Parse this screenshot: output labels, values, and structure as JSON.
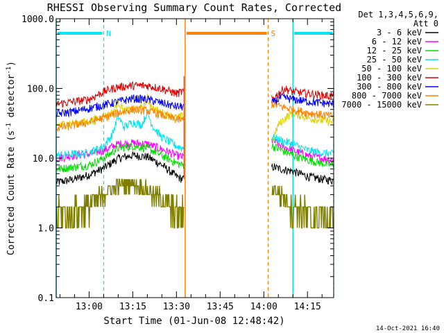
{
  "chart_data": {
    "type": "line",
    "title": "RHESSI Observing Summary Count Rates, Corrected",
    "xlabel": "Start Time (01-Jun-08 12:48:42)",
    "ylabel_main": "Corrected Count Rate (s",
    "ylabel_sup1": "-1",
    "ylabel_mid": " detector",
    "ylabel_sup2": "-1",
    "ylabel_end": ")",
    "yscale": "log",
    "ylim": [
      0.1,
      1000
    ],
    "xlim": [
      "12:48:42",
      "14:24:00"
    ],
    "x_ticks": [
      "13:00",
      "13:15",
      "13:30",
      "13:45",
      "14:00",
      "14:15"
    ],
    "y_ticks": [
      "0.1",
      "1.0",
      "10.0",
      "100.0",
      "1000.0"
    ],
    "legend_header": [
      "Det 1,3,4,5,6,9,",
      "Att 0"
    ],
    "legend_placement": "right",
    "footer_date": "14-Oct-2021 16:40",
    "markers": [
      {
        "label": "N",
        "type": "night",
        "start": "12:48:42",
        "end": "13:05:00",
        "color": "#00e5ee",
        "end_dashed": true
      },
      {
        "label": "S",
        "type": "saa",
        "start": "13:33:00",
        "end": "14:01:30",
        "color": "#ff8000",
        "end_dashed": true
      },
      {
        "label": "",
        "type": "night",
        "start": "14:10:00",
        "end": "14:24:00",
        "color": "#00e5ee",
        "end_dashed": true
      }
    ],
    "series": [
      {
        "name": "3 - 6 keV",
        "color": "#000000",
        "keys": [
          [
            "12:48:42",
            4.5
          ],
          [
            "12:55",
            5
          ],
          [
            "13:00",
            5.8
          ],
          [
            "13:05",
            7.2
          ],
          [
            "13:10",
            10
          ],
          [
            "13:15",
            11
          ],
          [
            "13:20",
            10.5
          ],
          [
            "13:25",
            8
          ],
          [
            "13:30",
            5.5
          ],
          [
            "13:32",
            5
          ],
          [
            "14:03",
            7.5
          ],
          [
            "14:06",
            7
          ],
          [
            "14:10",
            6.5
          ],
          [
            "14:15",
            5.5
          ],
          [
            "14:20",
            5
          ],
          [
            "14:24",
            4.8
          ]
        ]
      },
      {
        "name": "6 - 12 keV",
        "color": "#ff00ff",
        "keys": [
          [
            "12:48:42",
            10
          ],
          [
            "12:55",
            11
          ],
          [
            "13:00",
            11.5
          ],
          [
            "13:05",
            13
          ],
          [
            "13:10",
            16
          ],
          [
            "13:15",
            16.5
          ],
          [
            "13:20",
            16
          ],
          [
            "13:25",
            13.5
          ],
          [
            "13:30",
            11
          ],
          [
            "13:32",
            10.5
          ],
          [
            "14:03",
            18
          ],
          [
            "14:06",
            15
          ],
          [
            "14:10",
            13
          ],
          [
            "14:15",
            11
          ],
          [
            "14:20",
            10
          ],
          [
            "14:24",
            9.5
          ]
        ]
      },
      {
        "name": "12 - 25 keV",
        "color": "#00dd00",
        "keys": [
          [
            "12:48:42",
            7
          ],
          [
            "12:55",
            7.5
          ],
          [
            "13:00",
            8
          ],
          [
            "13:05",
            10
          ],
          [
            "13:10",
            14
          ],
          [
            "13:15",
            15
          ],
          [
            "13:20",
            14
          ],
          [
            "13:25",
            11
          ],
          [
            "13:30",
            8.5
          ],
          [
            "13:32",
            8
          ],
          [
            "14:03",
            15
          ],
          [
            "14:06",
            13
          ],
          [
            "14:10",
            11
          ],
          [
            "14:15",
            9.5
          ],
          [
            "14:20",
            8.5
          ],
          [
            "14:24",
            8
          ]
        ]
      },
      {
        "name": "25 - 50 keV",
        "color": "#00e5ee",
        "keys": [
          [
            "12:48:42",
            11
          ],
          [
            "12:55",
            11.5
          ],
          [
            "13:00",
            12
          ],
          [
            "13:05",
            15
          ],
          [
            "13:08",
            22
          ],
          [
            "13:10",
            40
          ],
          [
            "13:12",
            28
          ],
          [
            "13:15",
            33
          ],
          [
            "13:18",
            30
          ],
          [
            "13:20",
            45
          ],
          [
            "13:22",
            28
          ],
          [
            "13:25",
            20
          ],
          [
            "13:30",
            15
          ],
          [
            "13:32",
            14
          ],
          [
            "14:03",
            20
          ],
          [
            "14:06",
            18
          ],
          [
            "14:10",
            16
          ],
          [
            "14:15",
            13
          ],
          [
            "14:20",
            12
          ],
          [
            "14:24",
            11.5
          ]
        ]
      },
      {
        "name": "50 - 100 keV",
        "color": "#e0d000",
        "keys": [
          [
            "12:48:42",
            30
          ],
          [
            "12:55",
            32
          ],
          [
            "13:00",
            34
          ],
          [
            "13:05",
            40
          ],
          [
            "13:08",
            45
          ],
          [
            "13:10",
            65
          ],
          [
            "13:12",
            48
          ],
          [
            "13:15",
            50
          ],
          [
            "13:18",
            52
          ],
          [
            "13:20",
            72
          ],
          [
            "13:22",
            52
          ],
          [
            "13:25",
            45
          ],
          [
            "13:30",
            38
          ],
          [
            "13:32",
            40
          ],
          [
            "14:03",
            18
          ],
          [
            "14:05",
            30
          ],
          [
            "14:08",
            40
          ],
          [
            "14:10",
            45
          ],
          [
            "14:15",
            38
          ],
          [
            "14:20",
            35
          ],
          [
            "14:24",
            33
          ]
        ]
      },
      {
        "name": "100 - 300 keV",
        "color": "#dd0000",
        "keys": [
          [
            "12:48:42",
            60
          ],
          [
            "12:55",
            65
          ],
          [
            "13:00",
            70
          ],
          [
            "13:05",
            90
          ],
          [
            "13:08",
            100
          ],
          [
            "13:10",
            105
          ],
          [
            "13:15",
            110
          ],
          [
            "13:20",
            110
          ],
          [
            "13:25",
            100
          ],
          [
            "13:30",
            85
          ],
          [
            "13:32",
            90
          ],
          [
            "14:03",
            70
          ],
          [
            "14:05",
            85
          ],
          [
            "14:07",
            100
          ],
          [
            "14:10",
            90
          ],
          [
            "14:15",
            85
          ],
          [
            "14:20",
            80
          ],
          [
            "14:24",
            78
          ]
        ]
      },
      {
        "name": "300 - 800 keV",
        "color": "#0000ff",
        "keys": [
          [
            "12:48:42",
            43
          ],
          [
            "12:55",
            47
          ],
          [
            "13:00",
            52
          ],
          [
            "13:05",
            58
          ],
          [
            "13:10",
            65
          ],
          [
            "13:15",
            72
          ],
          [
            "13:20",
            70
          ],
          [
            "13:25",
            62
          ],
          [
            "13:30",
            55
          ],
          [
            "13:32",
            55
          ],
          [
            "14:03",
            62
          ],
          [
            "14:06",
            75
          ],
          [
            "14:10",
            70
          ],
          [
            "14:15",
            65
          ],
          [
            "14:20",
            62
          ],
          [
            "14:24",
            60
          ]
        ]
      },
      {
        "name": "800 - 7000 keV",
        "color": "#ff8000",
        "keys": [
          [
            "12:48:42",
            27
          ],
          [
            "12:55",
            30
          ],
          [
            "13:00",
            33
          ],
          [
            "13:05",
            38
          ],
          [
            "13:10",
            45
          ],
          [
            "13:15",
            50
          ],
          [
            "13:20",
            48
          ],
          [
            "13:25",
            42
          ],
          [
            "13:30",
            36
          ],
          [
            "13:32",
            35
          ],
          [
            "14:03",
            60
          ],
          [
            "14:06",
            55
          ],
          [
            "14:10",
            50
          ],
          [
            "14:15",
            45
          ],
          [
            "14:20",
            42
          ],
          [
            "14:24",
            40
          ]
        ]
      },
      {
        "name": "7000 - 15000 keV",
        "color": "#808000",
        "keys": [
          [
            "12:48:42",
            1.5
          ],
          [
            "12:55",
            1.7
          ],
          [
            "13:00",
            2.2
          ],
          [
            "13:05",
            3
          ],
          [
            "13:10",
            4
          ],
          [
            "13:15",
            4.5
          ],
          [
            "13:20",
            3.5
          ],
          [
            "13:25",
            2.5
          ],
          [
            "13:30",
            1.7
          ],
          [
            "13:32",
            1.6
          ],
          [
            "14:03",
            3.5
          ],
          [
            "14:06",
            3
          ],
          [
            "14:10",
            2
          ],
          [
            "14:15",
            1.6
          ],
          [
            "14:20",
            1.4
          ],
          [
            "14:24",
            1.3
          ]
        ]
      }
    ]
  }
}
